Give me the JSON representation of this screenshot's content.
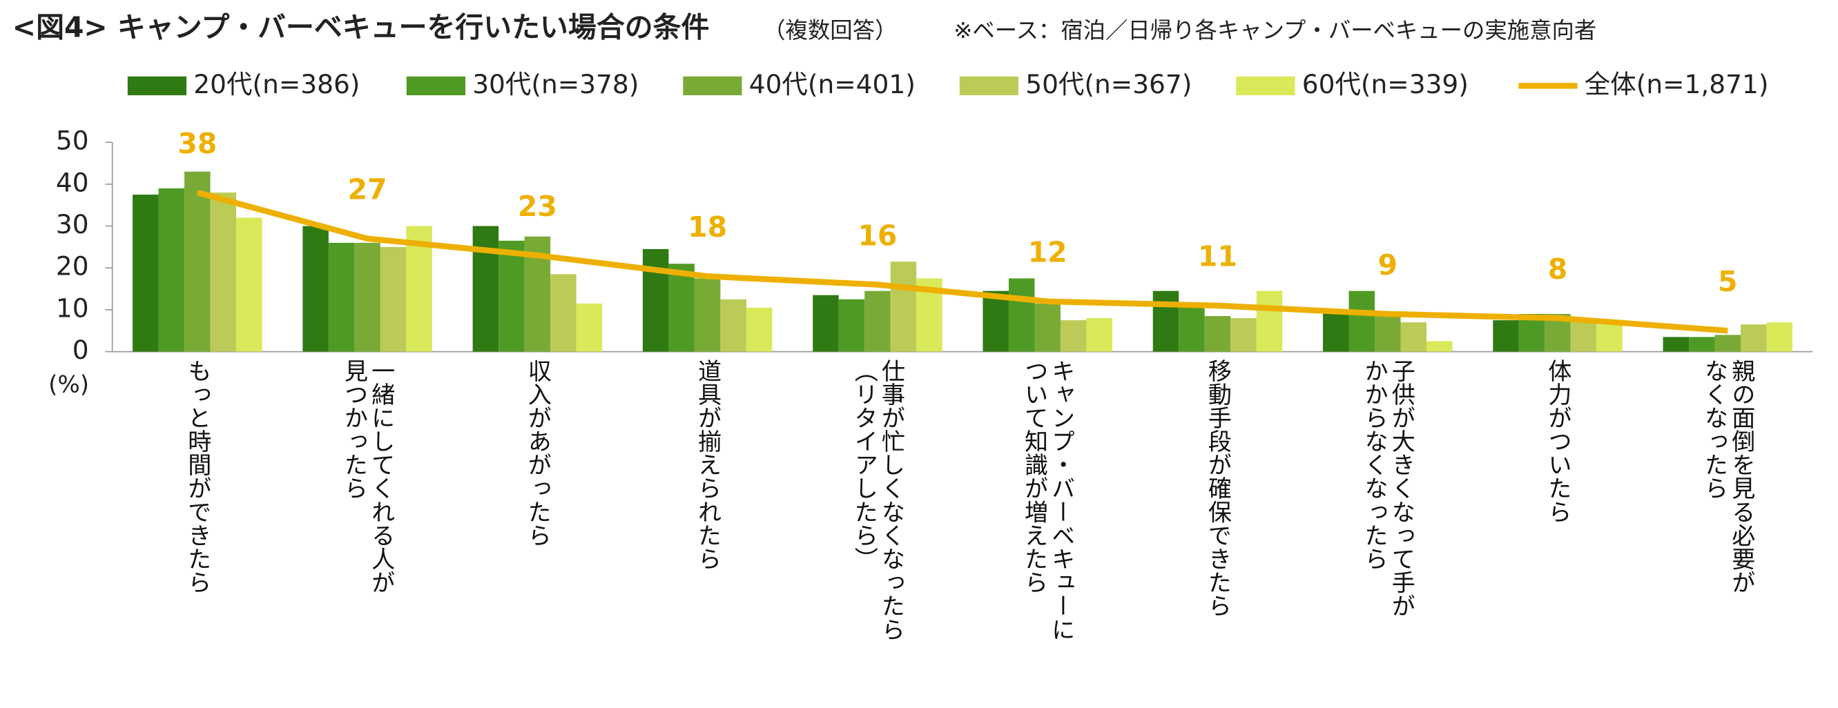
{
  "chart_data": {
    "type": "bar",
    "title": "<図4> キャンプ・バーベキューを行いたい場合の条件",
    "subtitle": "（複数回答）",
    "note": "※ベース：宿泊／日帰り各キャンプ・バーベキューの実施意向者",
    "y_label": "(%)",
    "categories": [
      "もっと時間ができたら",
      "一緒にしてくれる人が\n見つかったら",
      "収入があがったら",
      "道具が揃えられたら",
      "仕事が忙しくなくなったら\n（リタイアしたら）",
      "キャンプ・バーベキューに\nついて知識が増えたら",
      "移動手段が確保できたら",
      "子供が大きくなって手が\nかからなくなったら",
      "体力がついたら",
      "親の面倒を見る必要が\nなくなったら"
    ],
    "series": [
      {
        "name": "20代(n=386)",
        "color": "#2f7a12",
        "values": [
          37.5,
          30,
          30,
          24.5,
          13.5,
          14.5,
          14.5,
          9.5,
          7.5,
          3.5
        ]
      },
      {
        "name": "30代(n=378)",
        "color": "#4f9a24",
        "values": [
          39,
          26,
          26.5,
          21,
          12.5,
          17.5,
          11,
          14.5,
          9,
          3.5
        ]
      },
      {
        "name": "40代(n=401)",
        "color": "#79aa36",
        "values": [
          43,
          26,
          27.5,
          17.5,
          14.5,
          11.5,
          8.5,
          9,
          9,
          4
        ]
      },
      {
        "name": "50代(n=367)",
        "color": "#bccb58",
        "values": [
          38,
          25,
          18.5,
          12.5,
          21.5,
          7.5,
          8,
          7,
          8,
          6.5
        ]
      },
      {
        "name": "60代(n=339)",
        "color": "#d9e95a",
        "values": [
          32,
          30,
          11.5,
          10.5,
          17.5,
          8,
          14.5,
          2.5,
          6.5,
          7
        ]
      },
      {
        "name": "全体(n=1,871)",
        "color": "#eeb000",
        "type": "line",
        "values": [
          38,
          27,
          23,
          18,
          16,
          12,
          11,
          9,
          8,
          5
        ]
      }
    ],
    "ylim": [
      0,
      50
    ],
    "yticks": [
      0,
      10,
      20,
      30,
      40,
      50
    ]
  }
}
